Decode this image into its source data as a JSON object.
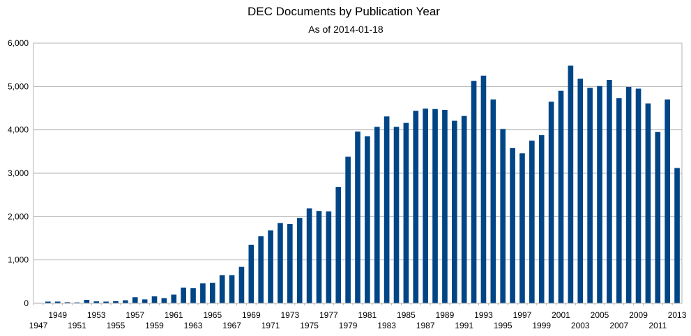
{
  "chart_data": {
    "type": "bar",
    "title": "DEC Documents by Publication Year",
    "subtitle": "As of 2014-01-18",
    "xlabel": "",
    "ylabel": "",
    "ylim": [
      0,
      6000
    ],
    "y_ticks": [
      "0",
      "1,000",
      "2,000",
      "3,000",
      "4,000",
      "5,000",
      "6,000"
    ],
    "y_tick_values": [
      0,
      1000,
      2000,
      3000,
      4000,
      5000,
      6000
    ],
    "grid": true,
    "legend": "none",
    "bar_color": "#004586",
    "categories": [
      "1947",
      "1948",
      "1949",
      "1950",
      "1951",
      "1952",
      "1953",
      "1954",
      "1955",
      "1956",
      "1957",
      "1958",
      "1959",
      "1960",
      "1961",
      "1962",
      "1963",
      "1964",
      "1965",
      "1966",
      "1967",
      "1968",
      "1969",
      "1970",
      "1971",
      "1972",
      "1973",
      "1974",
      "1975",
      "1976",
      "1977",
      "1978",
      "1979",
      "1980",
      "1981",
      "1982",
      "1983",
      "1984",
      "1985",
      "1986",
      "1987",
      "1988",
      "1989",
      "1990",
      "1991",
      "1992",
      "1993",
      "1994",
      "1995",
      "1996",
      "1997",
      "1998",
      "1999",
      "2000",
      "2001",
      "2002",
      "2003",
      "2004",
      "2005",
      "2006",
      "2007",
      "2008",
      "2009",
      "2010",
      "2011",
      "2012",
      "2013"
    ],
    "x_tick_labels": [
      "1947",
      "1949",
      "1951",
      "1953",
      "1955",
      "1957",
      "1959",
      "1961",
      "1963",
      "1965",
      "1967",
      "1969",
      "1971",
      "1973",
      "1975",
      "1977",
      "1979",
      "1981",
      "1983",
      "1985",
      "1987",
      "1989",
      "1991",
      "1993",
      "1995",
      "1997",
      "1999",
      "2001",
      "2003",
      "2005",
      "2007",
      "2009",
      "2011",
      "2013"
    ],
    "values": [
      10,
      40,
      40,
      25,
      20,
      80,
      45,
      40,
      50,
      70,
      140,
      90,
      160,
      120,
      200,
      360,
      350,
      460,
      470,
      650,
      650,
      840,
      1350,
      1550,
      1680,
      1850,
      1830,
      1970,
      2190,
      2130,
      2120,
      2680,
      3380,
      3960,
      3850,
      4070,
      4310,
      4070,
      4160,
      4440,
      4490,
      4480,
      4460,
      4210,
      4320,
      5130,
      5250,
      4700,
      4020,
      3580,
      3460,
      3750,
      3880,
      4650,
      4900,
      5480,
      5180,
      4970,
      5010,
      5150,
      4730,
      4990,
      4950,
      4610,
      3950,
      4700,
      3120
    ]
  }
}
